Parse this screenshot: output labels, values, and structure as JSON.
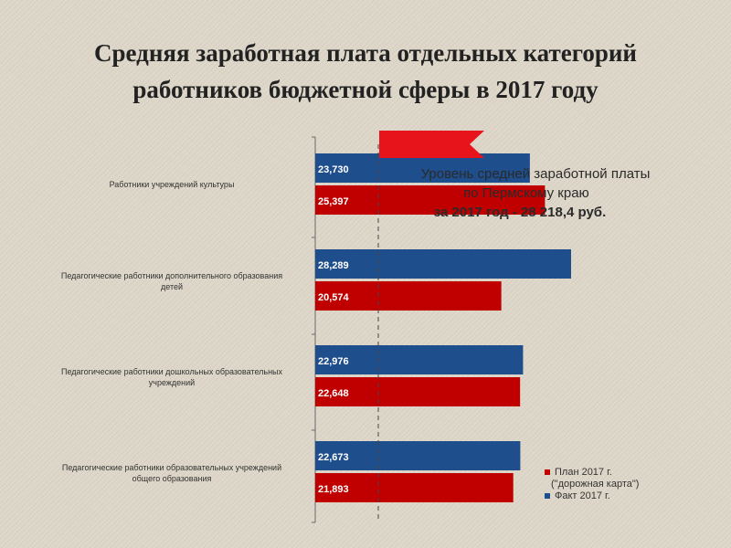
{
  "chart_data": {
    "type": "bar",
    "orientation": "horizontal",
    "title": "Средняя заработная плата отдельных категорий\nработников бюджетной сферы в 2017 году",
    "categories": [
      "Работники учреждений культуры",
      "Педагогические работники дополнительного образования детей",
      "Педагогические работники дошкольных образовательных учреждений",
      "Педагогические работники образовательных учреждений общего образования"
    ],
    "series": [
      {
        "name": "План 2017 г. (\"дорожная карта\")",
        "color": "#c00000",
        "values": [
          25397,
          20574,
          22648,
          21893
        ]
      },
      {
        "name": "Факт 2017 г.",
        "color": "#1f4e8c",
        "values": [
          23730,
          28289,
          22976,
          22673
        ]
      }
    ],
    "value_labels": [
      {
        "fact": "23,730",
        "plan": "25,397"
      },
      {
        "fact": "28,289",
        "plan": "20,574"
      },
      {
        "fact": "22,976",
        "plan": "22,648"
      },
      {
        "fact": "22,673",
        "plan": "21,893"
      }
    ],
    "reference_line": {
      "value": 28218.4,
      "label_lines": [
        "Уровень средней заработной платы",
        "по Пермскому краю",
        "за 2017 год - 28 218,4 руб."
      ]
    },
    "legend_position": "bottom-right",
    "grid": false
  },
  "legend": {
    "plan_line1": "План 2017 г.",
    "plan_line2": "(\"дорожная карта\")",
    "fact": "Факт 2017 г."
  },
  "colors": {
    "plan": "#c00000",
    "fact": "#1f4e8c",
    "flag": "#e8141b"
  }
}
